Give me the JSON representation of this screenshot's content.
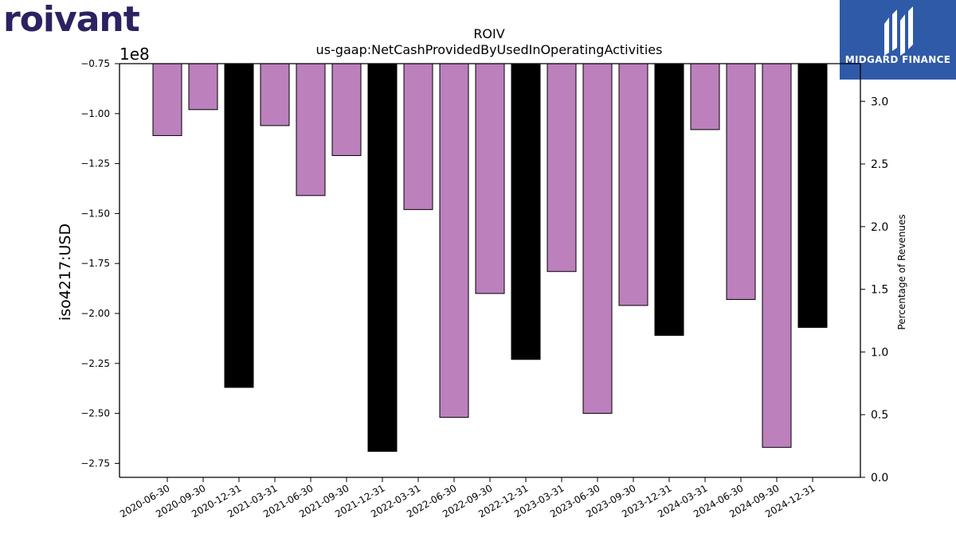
{
  "logos": {
    "left_text": "roivant",
    "right_text": "MIDGARD FINANCE"
  },
  "chart_data": {
    "type": "bar",
    "title": "ROIV",
    "subtitle": "us-gaap:NetCashProvidedByUsedInOperatingActivities",
    "ylabel": "iso4217:USD",
    "y_offset_label": "1e8",
    "y2label": "Percentage of Revenues",
    "ylim": [
      -2.82,
      -0.75
    ],
    "y_ticks": [
      -0.75,
      -1.0,
      -1.25,
      -1.5,
      -1.75,
      -2.0,
      -2.25,
      -2.5,
      -2.75
    ],
    "y_tick_labels": [
      "−0.75",
      "−1.00",
      "−1.25",
      "−1.50",
      "−1.75",
      "−2.00",
      "−2.25",
      "−2.50",
      "−2.75"
    ],
    "y2lim": [
      0.0,
      3.3
    ],
    "y2_ticks": [
      0.0,
      0.5,
      1.0,
      1.5,
      2.0,
      2.5,
      3.0
    ],
    "y2_tick_labels": [
      "0.0",
      "0.5",
      "1.0",
      "1.5",
      "2.0",
      "2.5",
      "3.0"
    ],
    "categories": [
      "2020-06-30",
      "2020-09-30",
      "2020-12-31",
      "2021-03-31",
      "2021-06-30",
      "2021-09-30",
      "2021-12-31",
      "2022-03-31",
      "2022-06-30",
      "2022-09-30",
      "2022-12-31",
      "2023-03-31",
      "2023-06-30",
      "2023-09-30",
      "2023-12-31",
      "2024-03-31",
      "2024-06-30",
      "2024-09-30",
      "2024-12-31"
    ],
    "values": [
      -1.11,
      -0.98,
      -2.37,
      -1.06,
      -1.41,
      -1.21,
      -2.69,
      -1.48,
      -2.52,
      -1.9,
      -2.23,
      -1.79,
      -2.5,
      -1.96,
      -2.11,
      -1.08,
      -1.93,
      -2.67,
      -2.07
    ],
    "bar_colors": [
      "#bc80bd",
      "#bc80bd",
      "#000000",
      "#bc80bd",
      "#bc80bd",
      "#bc80bd",
      "#000000",
      "#bc80bd",
      "#bc80bd",
      "#bc80bd",
      "#000000",
      "#bc80bd",
      "#bc80bd",
      "#bc80bd",
      "#000000",
      "#bc80bd",
      "#bc80bd",
      "#bc80bd",
      "#000000"
    ],
    "grid": false
  }
}
